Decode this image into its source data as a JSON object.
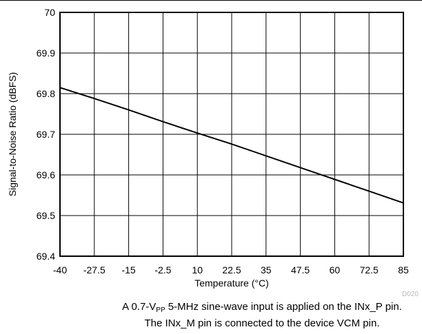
{
  "chart_data": {
    "type": "line",
    "title": "",
    "xlabel": "Temperature (°C)",
    "ylabel": "Signal-to-Noise Ratio (dBFS)",
    "xlim": [
      -40,
      85
    ],
    "ylim": [
      69.4,
      70
    ],
    "x_ticks": [
      -40,
      -27.5,
      -15,
      -2.5,
      10,
      22.5,
      35,
      47.5,
      60,
      72.5,
      85
    ],
    "y_ticks": [
      69.4,
      69.5,
      69.6,
      69.7,
      69.8,
      69.9,
      70
    ],
    "x_tick_labels": [
      "-40",
      "-27.5",
      "-15",
      "-2.5",
      "10",
      "22.5",
      "35",
      "47.5",
      "60",
      "72.5",
      "85"
    ],
    "y_tick_labels": [
      "69.4",
      "69.5",
      "69.6",
      "69.7",
      "69.8",
      "69.9",
      "70"
    ],
    "grid": true,
    "series": [
      {
        "x": [
          -40,
          -27.5,
          -15,
          -2.5,
          10,
          22.5,
          35,
          47.5,
          60,
          72.5,
          85
        ],
        "y": [
          69.815,
          69.788,
          69.76,
          69.731,
          69.703,
          69.676,
          69.647,
          69.618,
          69.589,
          69.56,
          69.531
        ],
        "color": "#000000"
      }
    ],
    "figure_code": "D020"
  },
  "caption": {
    "line1_pre": "A 0.7-V",
    "line1_sub": "PP",
    "line1_post": " 5-MHz sine-wave input is applied on the INx_P pin.",
    "line2": "The INx_M pin is connected to the device VCM pin."
  }
}
